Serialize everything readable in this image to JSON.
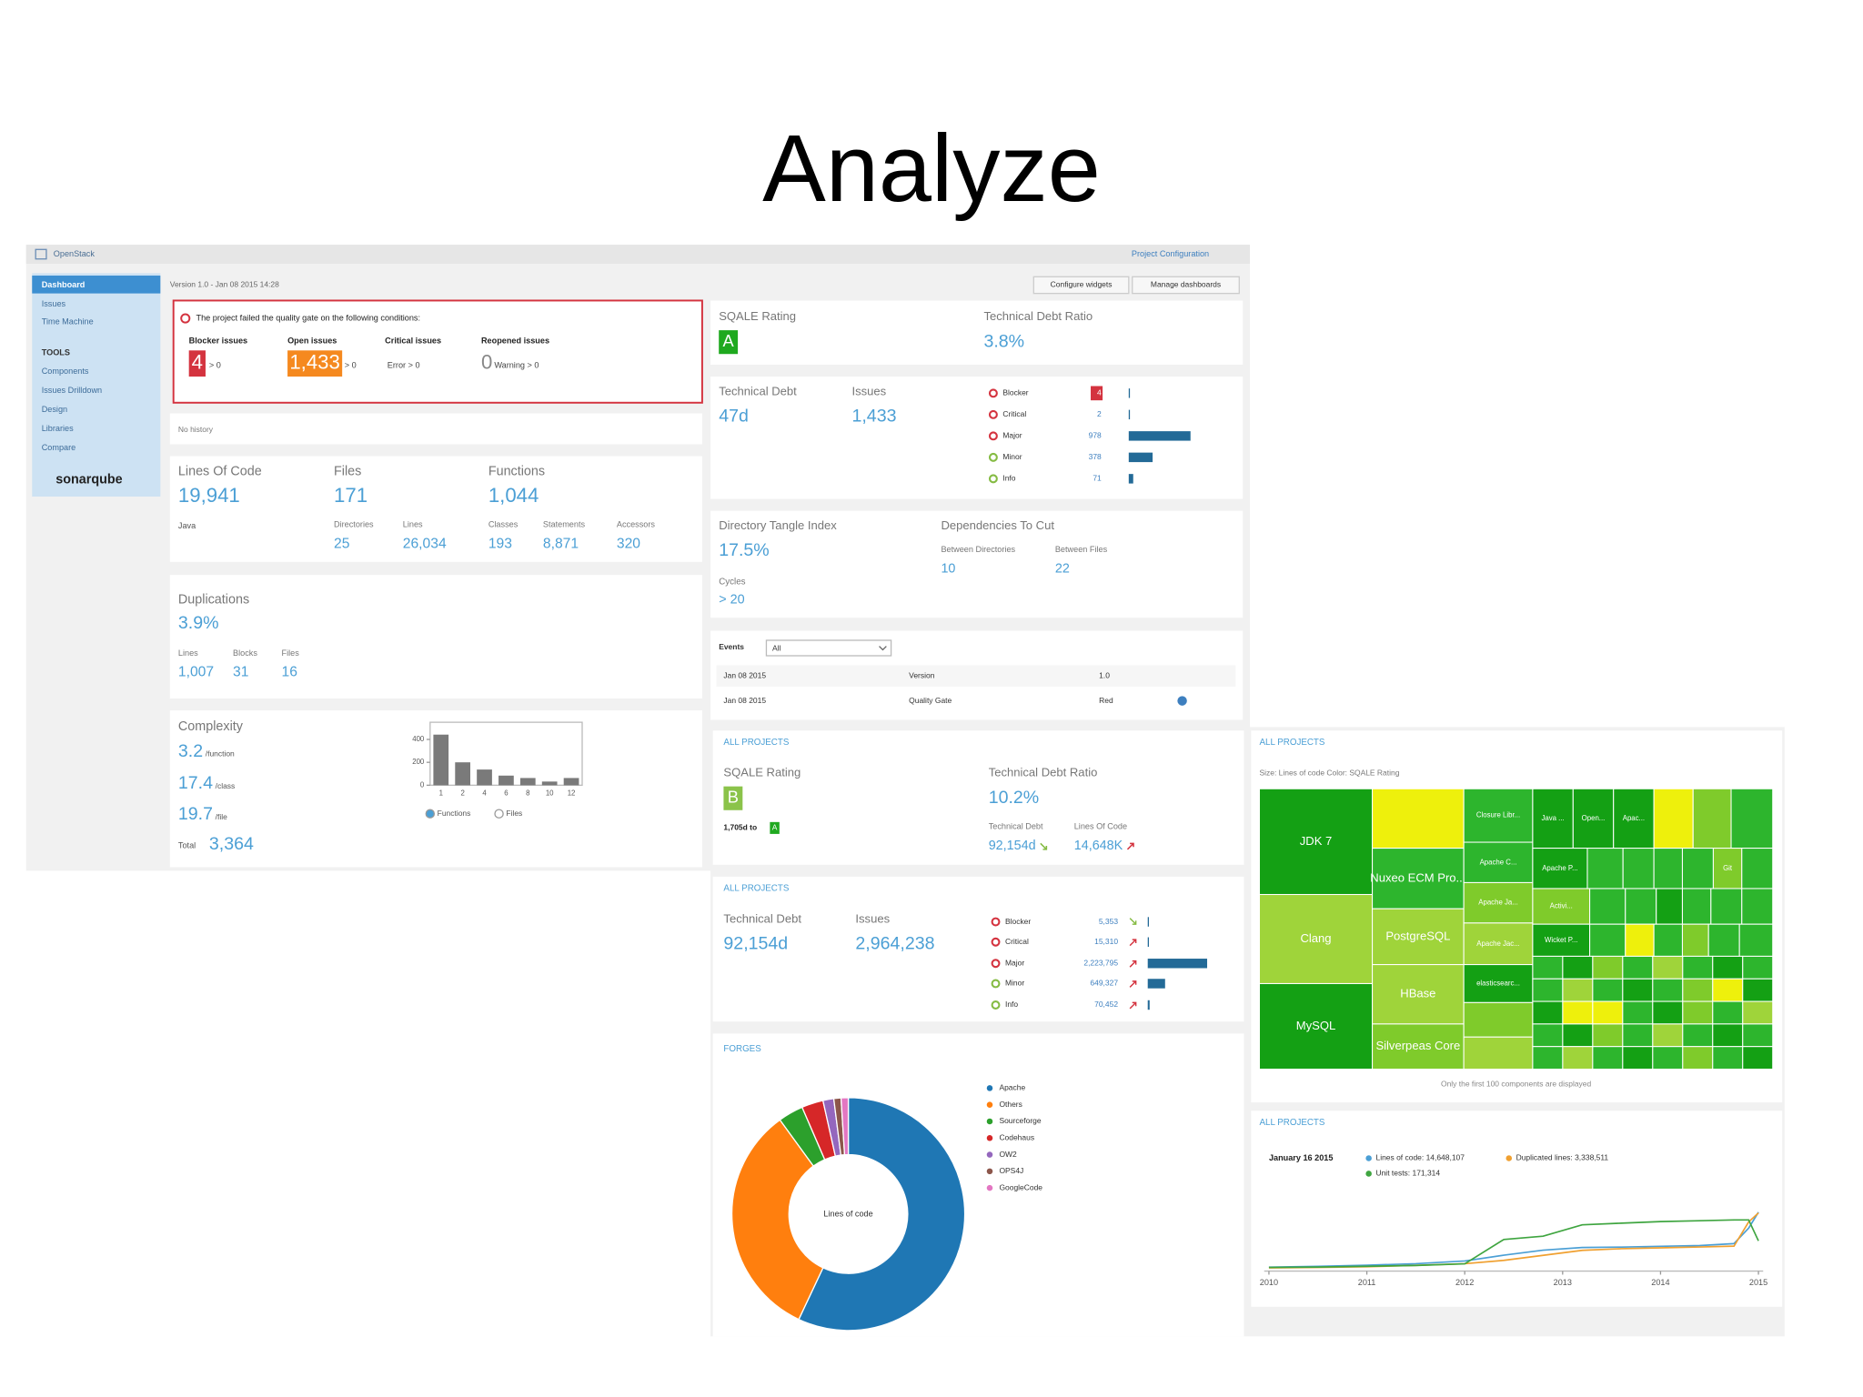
{
  "title": "Analyze",
  "header": {
    "project": "OpenStack",
    "configuration": "Project Configuration"
  },
  "sidebar": {
    "items": [
      "Dashboard",
      "Issues",
      "Time Machine"
    ],
    "tools_heading": "TOOLS",
    "tools": [
      "Components",
      "Issues Drilldown",
      "Design",
      "Libraries",
      "Compare"
    ],
    "logo": "sonarqube"
  },
  "version": "Version 1.0 - Jan 08 2015 14:28",
  "buttons": [
    "Configure widgets",
    "Manage dashboards"
  ],
  "quality_gate": {
    "message": "The project failed the quality gate on the following conditions:",
    "conditions": [
      {
        "label": "Blocker issues",
        "value": "4",
        "threshold": "> 0"
      },
      {
        "label": "Open issues",
        "value": "1,433",
        "threshold": "> 0"
      },
      {
        "label": "Critical issues",
        "threshold": "Error > 0"
      },
      {
        "label": "Reopened issues",
        "value": "0",
        "threshold": "Warning > 0"
      }
    ]
  },
  "history": "No history",
  "size": {
    "metrics": [
      {
        "label": "Lines Of Code",
        "value": "19,941"
      },
      {
        "label": "Files",
        "value": "171"
      },
      {
        "label": "Functions",
        "value": "1,044"
      }
    ],
    "language": "Java",
    "details": [
      {
        "label": "Directories",
        "value": "25"
      },
      {
        "label": "Lines",
        "value": "26,034"
      },
      {
        "label": "Classes",
        "value": "193"
      },
      {
        "label": "Statements",
        "value": "8,871"
      },
      {
        "label": "Accessors",
        "value": "320"
      }
    ]
  },
  "duplications": {
    "label": "Duplications",
    "value": "3.9%",
    "details": [
      {
        "label": "Lines",
        "value": "1,007"
      },
      {
        "label": "Blocks",
        "value": "31"
      },
      {
        "label": "Files",
        "value": "16"
      }
    ]
  },
  "complexity": {
    "label": "Complexity",
    "averages": [
      {
        "value": "3.2",
        "unit": "/function"
      },
      {
        "value": "17.4",
        "unit": "/class"
      },
      {
        "value": "19.7",
        "unit": "/file"
      }
    ],
    "total_label": "Total",
    "total": "3,364",
    "chart": {
      "type": "bar",
      "categories": [
        "1",
        "2",
        "4",
        "6",
        "8",
        "10",
        "12"
      ],
      "values": [
        442,
        200,
        137,
        84,
        63,
        32,
        63
      ],
      "ylim": [
        0,
        550
      ],
      "yticks": [
        0,
        200,
        400
      ],
      "color": "#7a7a7a"
    },
    "options": [
      "Functions",
      "Files"
    ]
  },
  "sqale": {
    "rating_label": "SQALE Rating",
    "rating": "A",
    "ratio_label": "Technical Debt Ratio",
    "ratio": "3.8%"
  },
  "issues": {
    "debt_label": "Technical Debt",
    "debt": "47d",
    "issues_label": "Issues",
    "issues": "1,433",
    "bar_color": "#236a97",
    "severities": [
      {
        "name": "Blocker",
        "count": 4
      },
      {
        "name": "Critical",
        "count": 2
      },
      {
        "name": "Major",
        "count": 978
      },
      {
        "name": "Minor",
        "count": 378
      },
      {
        "name": "Info",
        "count": 71
      }
    ]
  },
  "design": {
    "tangle_label": "Directory Tangle Index",
    "tangle": "17.5%",
    "cycles_label": "Cycles",
    "cycles": "> 20",
    "cut_label": "Dependencies To Cut",
    "cuts": [
      {
        "label": "Between Directories",
        "value": "10"
      },
      {
        "label": "Between Files",
        "value": "22"
      }
    ]
  },
  "events": {
    "label": "Events",
    "filter": "All",
    "rows": [
      [
        "Jan 08 2015",
        "Version",
        "1.0"
      ],
      [
        "Jan 08 2015",
        "Quality Gate",
        "Red"
      ]
    ]
  },
  "all_sqale": {
    "heading": "ALL PROJECTS",
    "rating_label": "SQALE Rating",
    "rating": "B",
    "to_target": "1,705d to",
    "target": "A",
    "ratio_label": "Technical Debt Ratio",
    "ratio": "10.2%",
    "details": [
      {
        "label": "Technical Debt",
        "value": "92,154d"
      },
      {
        "label": "Lines Of Code",
        "value": "14,648K"
      }
    ]
  },
  "all_issues": {
    "heading": "ALL PROJECTS",
    "debt_label": "Technical Debt",
    "debt": "92,154d",
    "issues_label": "Issues",
    "issues": "2,964,238",
    "bar_color": "#236a97",
    "severities": [
      {
        "name": "Blocker",
        "count": 5353,
        "count_label": "5,353"
      },
      {
        "name": "Critical",
        "count": 15310,
        "count_label": "15,310"
      },
      {
        "name": "Major",
        "count": 2223795,
        "count_label": "2,223,795"
      },
      {
        "name": "Minor",
        "count": 649327,
        "count_label": "649,327"
      },
      {
        "name": "Info",
        "count": 70452,
        "count_label": "70,452"
      }
    ]
  },
  "forges": {
    "type": "pie",
    "heading": "FORGES",
    "center_label": "Lines of code",
    "categories": [
      "Apache",
      "Others",
      "Sourceforge",
      "Codehaus",
      "OW2",
      "OPS4J",
      "GoogleCode"
    ],
    "values": [
      57,
      33,
      3.5,
      3,
      1.5,
      1,
      1
    ],
    "colors": [
      "#1f77b4",
      "#ff7f0e",
      "#2ca02c",
      "#d62728",
      "#9467bd",
      "#8c564b",
      "#e377c2"
    ]
  },
  "treemap": {
    "heading": "ALL PROJECTS",
    "legend": "Size: Lines of code   Color: SQALE Rating",
    "labels": [
      "JDK 7",
      "Clang",
      "MySQL",
      "Nuxeo ECM Pro...",
      "PostgreSQL",
      "HBase",
      "Silverpeas Core",
      "Closure Libr...",
      "Apache C...",
      "Apache Ja...",
      "Apache Jac...",
      "elasticsearc...",
      "Wicket P...",
      "Activi...",
      "Apache P...",
      "Java ...",
      "Open...",
      "Apac...",
      "Git"
    ],
    "footer": "Only the first 100 components are displayed"
  },
  "timeline": {
    "type": "line",
    "heading": "ALL PROJECTS",
    "date": "January 16 2015",
    "x": [
      2010.0,
      2010.5,
      2011.0,
      2011.5,
      2012.0,
      2012.4,
      2012.8,
      2013.2,
      2013.6,
      2014.0,
      2014.4,
      2014.75,
      2014.9,
      2015.0
    ],
    "xlim": [
      2010,
      2015
    ],
    "xticks": [
      2010,
      2011,
      2012,
      2013,
      2014,
      2015
    ],
    "series": [
      {
        "name": "Lines of code: 14,648,107",
        "color": "#4b9fd5",
        "ylim": [
          0,
          16000000
        ],
        "values": [
          400000,
          600000,
          900000,
          1300000,
          2000000,
          3500000,
          4800000,
          5500000,
          5600000,
          5800000,
          6000000,
          6500000,
          10500000,
          14648107
        ]
      },
      {
        "name": "Duplicated lines: 3,338,511",
        "color": "#f0a030",
        "ylim": [
          0,
          3700000
        ],
        "values": [
          50000,
          80000,
          120000,
          200000,
          300000,
          500000,
          800000,
          1100000,
          1200000,
          1250000,
          1300000,
          1350000,
          2800000,
          3338511
        ]
      },
      {
        "name": "Unit tests: 171,314",
        "color": "#3fa540",
        "ylim": [
          0,
          380000
        ],
        "values": [
          8000,
          10000,
          15000,
          20000,
          30000,
          180000,
          200000,
          270000,
          280000,
          290000,
          295000,
          300000,
          300000,
          171314
        ]
      }
    ]
  }
}
